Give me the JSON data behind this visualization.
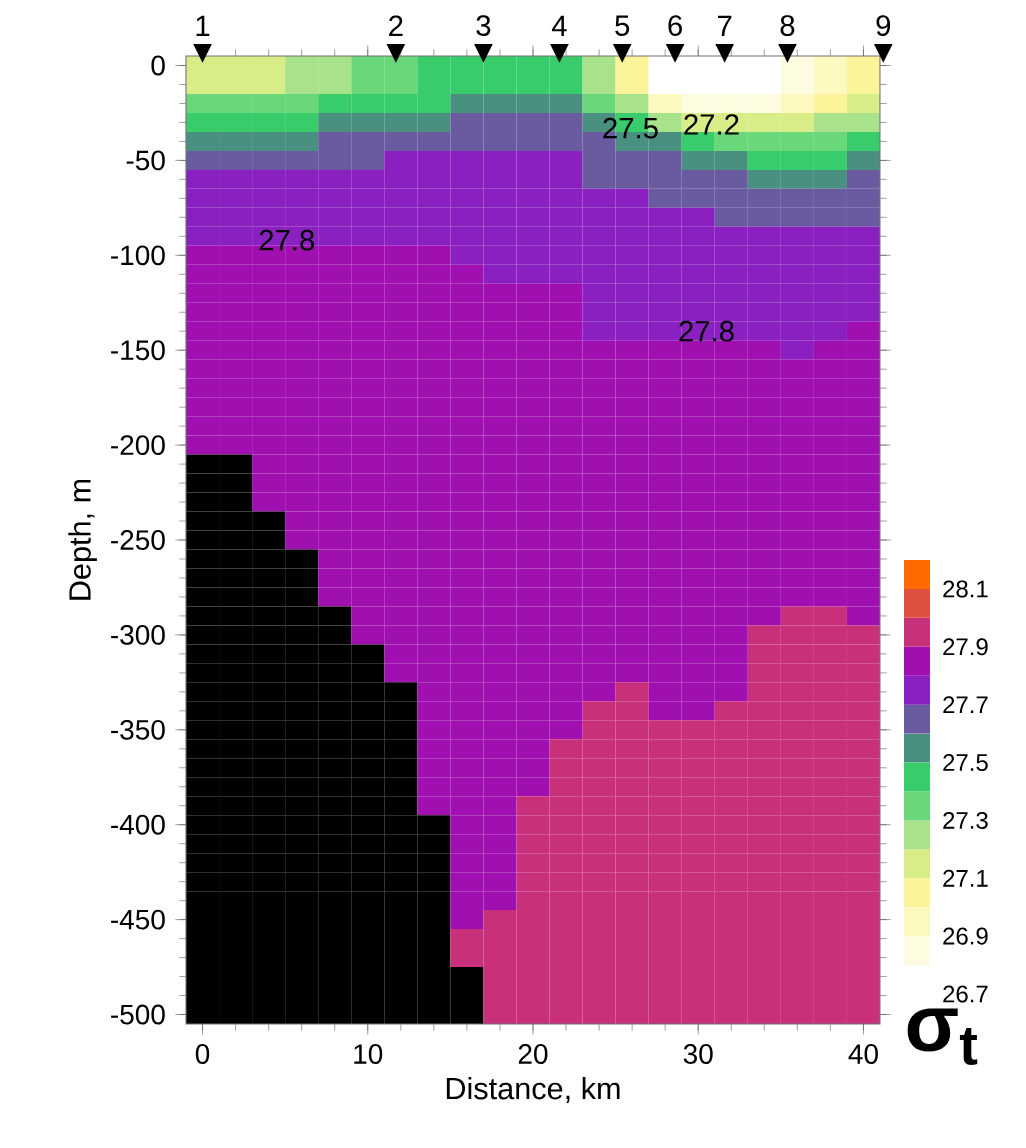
{
  "chart_data": {
    "type": "heatmap",
    "xlabel": "Distance, km",
    "ylabel": "Depth, m",
    "clim": [
      26.7,
      28.2
    ],
    "cticks": [
      26.7,
      26.9,
      27.1,
      27.3,
      27.5,
      27.7,
      27.9,
      28.1
    ],
    "categories": [
      "0",
      null,
      null,
      null,
      null,
      "10",
      null,
      null,
      null,
      null,
      "20",
      null,
      null,
      null,
      null,
      "30",
      null,
      null,
      null,
      null,
      "40"
    ],
    "y_categories": [
      "0",
      null,
      null,
      null,
      null,
      "-50",
      null,
      null,
      null,
      null,
      "-100",
      null,
      null,
      null,
      null,
      "-150",
      null,
      null,
      null,
      null,
      "-200",
      null,
      null,
      null,
      null,
      "-250",
      null,
      null,
      null,
      null,
      "-300",
      null,
      null,
      null,
      null,
      "-350",
      null,
      null,
      null,
      null,
      "-400",
      null,
      null,
      null,
      null,
      "-450",
      null,
      null,
      null,
      null,
      "-500"
    ],
    "cells": [
      [
        27.15,
        27.15,
        27.15,
        27.25,
        27.25,
        27.35,
        27.35,
        27.45,
        27.45,
        27.45,
        27.45,
        27.45,
        27.25,
        27.05,
        26.75,
        26.75,
        26.75,
        26.75,
        26.85,
        26.95,
        27.05
      ],
      [
        27.15,
        27.15,
        27.15,
        27.25,
        27.25,
        27.35,
        27.35,
        27.45,
        27.45,
        27.45,
        27.45,
        27.45,
        27.25,
        27.05,
        26.75,
        26.75,
        26.75,
        26.75,
        26.85,
        26.95,
        27.05
      ],
      [
        27.35,
        27.35,
        27.35,
        27.35,
        27.45,
        27.45,
        27.45,
        27.45,
        27.55,
        27.55,
        27.55,
        27.55,
        27.35,
        27.25,
        26.95,
        26.85,
        26.85,
        26.85,
        26.95,
        27.05,
        27.15
      ],
      [
        27.45,
        27.45,
        27.45,
        27.45,
        27.55,
        27.55,
        27.55,
        27.55,
        27.65,
        27.65,
        27.65,
        27.65,
        27.55,
        27.45,
        27.25,
        27.15,
        27.15,
        27.15,
        27.15,
        27.25,
        27.25
      ],
      [
        27.55,
        27.55,
        27.55,
        27.55,
        27.65,
        27.65,
        27.65,
        27.65,
        27.65,
        27.65,
        27.65,
        27.65,
        27.65,
        27.55,
        27.55,
        27.45,
        27.35,
        27.35,
        27.35,
        27.35,
        27.45
      ],
      [
        27.65,
        27.65,
        27.65,
        27.65,
        27.65,
        27.65,
        27.75,
        27.75,
        27.75,
        27.75,
        27.75,
        27.75,
        27.65,
        27.65,
        27.65,
        27.55,
        27.55,
        27.45,
        27.45,
        27.45,
        27.55
      ],
      [
        27.75,
        27.75,
        27.75,
        27.75,
        27.75,
        27.75,
        27.75,
        27.75,
        27.75,
        27.75,
        27.75,
        27.75,
        27.65,
        27.65,
        27.65,
        27.65,
        27.65,
        27.55,
        27.55,
        27.55,
        27.65
      ],
      [
        27.75,
        27.75,
        27.75,
        27.75,
        27.75,
        27.75,
        27.75,
        27.75,
        27.75,
        27.75,
        27.75,
        27.75,
        27.75,
        27.75,
        27.65,
        27.65,
        27.65,
        27.65,
        27.65,
        27.65,
        27.65
      ],
      [
        27.75,
        27.75,
        27.75,
        27.75,
        27.75,
        27.75,
        27.75,
        27.75,
        27.75,
        27.75,
        27.75,
        27.75,
        27.75,
        27.75,
        27.75,
        27.75,
        27.65,
        27.65,
        27.65,
        27.65,
        27.65
      ],
      [
        27.75,
        27.75,
        27.75,
        27.75,
        27.75,
        27.75,
        27.75,
        27.75,
        27.75,
        27.75,
        27.75,
        27.75,
        27.75,
        27.75,
        27.75,
        27.75,
        27.75,
        27.75,
        27.75,
        27.75,
        27.75
      ],
      [
        27.85,
        27.85,
        27.85,
        27.85,
        27.85,
        27.85,
        27.85,
        27.85,
        27.75,
        27.75,
        27.75,
        27.75,
        27.75,
        27.75,
        27.75,
        27.75,
        27.75,
        27.75,
        27.75,
        27.75,
        27.75
      ],
      [
        27.85,
        27.85,
        27.85,
        27.85,
        27.85,
        27.85,
        27.85,
        27.85,
        27.85,
        27.75,
        27.75,
        27.75,
        27.75,
        27.75,
        27.75,
        27.75,
        27.75,
        27.75,
        27.75,
        27.75,
        27.75
      ],
      [
        27.85,
        27.85,
        27.85,
        27.85,
        27.85,
        27.85,
        27.85,
        27.85,
        27.85,
        27.85,
        27.85,
        27.85,
        27.75,
        27.75,
        27.75,
        27.75,
        27.75,
        27.75,
        27.75,
        27.75,
        27.75
      ],
      [
        27.85,
        27.85,
        27.85,
        27.85,
        27.85,
        27.85,
        27.85,
        27.85,
        27.85,
        27.85,
        27.85,
        27.85,
        27.75,
        27.75,
        27.75,
        27.75,
        27.75,
        27.75,
        27.75,
        27.75,
        27.75
      ],
      [
        27.85,
        27.85,
        27.85,
        27.85,
        27.85,
        27.85,
        27.85,
        27.85,
        27.85,
        27.85,
        27.85,
        27.85,
        27.75,
        27.75,
        27.75,
        27.75,
        27.75,
        27.75,
        27.75,
        27.75,
        27.85
      ],
      [
        27.85,
        27.85,
        27.85,
        27.85,
        27.85,
        27.85,
        27.85,
        27.85,
        27.85,
        27.85,
        27.85,
        27.85,
        27.85,
        27.85,
        27.85,
        27.85,
        27.85,
        27.85,
        27.75,
        27.85,
        27.85
      ],
      [
        27.85,
        27.85,
        27.85,
        27.85,
        27.85,
        27.85,
        27.85,
        27.85,
        27.85,
        27.85,
        27.85,
        27.85,
        27.85,
        27.85,
        27.85,
        27.85,
        27.85,
        27.85,
        27.85,
        27.85,
        27.85
      ],
      [
        27.85,
        27.85,
        27.85,
        27.85,
        27.85,
        27.85,
        27.85,
        27.85,
        27.85,
        27.85,
        27.85,
        27.85,
        27.85,
        27.85,
        27.85,
        27.85,
        27.85,
        27.85,
        27.85,
        27.85,
        27.85
      ],
      [
        27.85,
        27.85,
        27.85,
        27.85,
        27.85,
        27.85,
        27.85,
        27.85,
        27.85,
        27.85,
        27.85,
        27.85,
        27.85,
        27.85,
        27.85,
        27.85,
        27.85,
        27.85,
        27.85,
        27.85,
        27.85
      ],
      [
        27.85,
        27.85,
        27.85,
        27.85,
        27.85,
        27.85,
        27.85,
        27.85,
        27.85,
        27.85,
        27.85,
        27.85,
        27.85,
        27.85,
        27.85,
        27.85,
        27.85,
        27.85,
        27.85,
        27.85,
        27.85
      ],
      [
        27.85,
        27.85,
        27.85,
        27.85,
        27.85,
        27.85,
        27.85,
        27.85,
        27.85,
        27.85,
        27.85,
        27.85,
        27.85,
        27.85,
        27.85,
        27.85,
        27.85,
        27.85,
        27.85,
        27.85,
        27.85
      ],
      [
        null,
        null,
        27.85,
        27.85,
        27.85,
        27.85,
        27.85,
        27.85,
        27.85,
        27.85,
        27.85,
        27.85,
        27.85,
        27.85,
        27.85,
        27.85,
        27.85,
        27.85,
        27.85,
        27.85,
        27.85
      ],
      [
        null,
        null,
        27.85,
        27.85,
        27.85,
        27.85,
        27.85,
        27.85,
        27.85,
        27.85,
        27.85,
        27.85,
        27.85,
        27.85,
        27.85,
        27.85,
        27.85,
        27.85,
        27.85,
        27.85,
        27.85
      ],
      [
        null,
        null,
        27.85,
        27.85,
        27.85,
        27.85,
        27.85,
        27.85,
        27.85,
        27.85,
        27.85,
        27.85,
        27.85,
        27.85,
        27.85,
        27.85,
        27.85,
        27.85,
        27.85,
        27.85,
        27.85
      ],
      [
        null,
        null,
        null,
        27.85,
        27.85,
        27.85,
        27.85,
        27.85,
        27.85,
        27.85,
        27.85,
        27.85,
        27.85,
        27.85,
        27.85,
        27.85,
        27.85,
        27.85,
        27.85,
        27.85,
        27.85
      ],
      [
        null,
        null,
        null,
        27.85,
        27.85,
        27.85,
        27.85,
        27.85,
        27.85,
        27.85,
        27.85,
        27.85,
        27.85,
        27.85,
        27.85,
        27.85,
        27.85,
        27.85,
        27.85,
        27.85,
        27.85
      ],
      [
        null,
        null,
        null,
        null,
        27.85,
        27.85,
        27.85,
        27.85,
        27.85,
        27.85,
        27.85,
        27.85,
        27.85,
        27.85,
        27.85,
        27.85,
        27.85,
        27.85,
        27.85,
        27.85,
        27.85
      ],
      [
        null,
        null,
        null,
        null,
        27.85,
        27.85,
        27.85,
        27.85,
        27.85,
        27.85,
        27.85,
        27.85,
        27.85,
        27.85,
        27.85,
        27.85,
        27.85,
        27.85,
        27.85,
        27.85,
        27.85
      ],
      [
        null,
        null,
        null,
        null,
        27.85,
        27.85,
        27.85,
        27.85,
        27.85,
        27.85,
        27.85,
        27.85,
        27.85,
        27.85,
        27.85,
        27.85,
        27.85,
        27.85,
        27.85,
        27.85,
        27.85
      ],
      [
        null,
        null,
        null,
        null,
        null,
        27.85,
        27.85,
        27.85,
        27.85,
        27.85,
        27.85,
        27.85,
        27.85,
        27.85,
        27.85,
        27.85,
        27.85,
        27.85,
        27.95,
        27.95,
        27.85
      ],
      [
        null,
        null,
        null,
        null,
        null,
        27.85,
        27.85,
        27.85,
        27.85,
        27.85,
        27.85,
        27.85,
        27.85,
        27.85,
        27.85,
        27.85,
        27.85,
        27.95,
        27.95,
        27.95,
        27.95
      ],
      [
        null,
        null,
        null,
        null,
        null,
        null,
        27.85,
        27.85,
        27.85,
        27.85,
        27.85,
        27.85,
        27.85,
        27.85,
        27.85,
        27.85,
        27.85,
        27.95,
        27.95,
        27.95,
        27.95
      ],
      [
        null,
        null,
        null,
        null,
        null,
        null,
        27.85,
        27.85,
        27.85,
        27.85,
        27.85,
        27.85,
        27.85,
        27.85,
        27.85,
        27.85,
        27.85,
        27.95,
        27.95,
        27.95,
        27.95
      ],
      [
        null,
        null,
        null,
        null,
        null,
        null,
        null,
        27.85,
        27.85,
        27.85,
        27.85,
        27.85,
        27.85,
        27.95,
        27.85,
        27.85,
        27.85,
        27.95,
        27.95,
        27.95,
        27.95
      ],
      [
        null,
        null,
        null,
        null,
        null,
        null,
        null,
        27.85,
        27.85,
        27.85,
        27.85,
        27.85,
        27.95,
        27.95,
        27.85,
        27.85,
        27.95,
        27.95,
        27.95,
        27.95,
        27.95
      ],
      [
        null,
        null,
        null,
        null,
        null,
        null,
        null,
        27.85,
        27.85,
        27.85,
        27.85,
        27.85,
        27.95,
        27.95,
        27.95,
        27.95,
        27.95,
        27.95,
        27.95,
        27.95,
        27.95
      ],
      [
        null,
        null,
        null,
        null,
        null,
        null,
        null,
        27.85,
        27.85,
        27.85,
        27.85,
        27.95,
        27.95,
        27.95,
        27.95,
        27.95,
        27.95,
        27.95,
        27.95,
        27.95,
        27.95
      ],
      [
        null,
        null,
        null,
        null,
        null,
        null,
        null,
        27.85,
        27.85,
        27.85,
        27.85,
        27.95,
        27.95,
        27.95,
        27.95,
        27.95,
        27.95,
        27.95,
        27.95,
        27.95,
        27.95
      ],
      [
        null,
        null,
        null,
        null,
        null,
        null,
        null,
        27.85,
        27.85,
        27.85,
        27.85,
        27.95,
        27.95,
        27.95,
        27.95,
        27.95,
        27.95,
        27.95,
        27.95,
        27.95,
        27.95
      ],
      [
        null,
        null,
        null,
        null,
        null,
        null,
        null,
        27.85,
        27.85,
        27.85,
        27.95,
        27.95,
        27.95,
        27.95,
        27.95,
        27.95,
        27.95,
        27.95,
        27.95,
        27.95,
        27.95
      ],
      [
        null,
        null,
        null,
        null,
        null,
        null,
        null,
        null,
        27.85,
        27.85,
        27.95,
        27.95,
        27.95,
        27.95,
        27.95,
        27.95,
        27.95,
        27.95,
        27.95,
        27.95,
        27.95
      ],
      [
        null,
        null,
        null,
        null,
        null,
        null,
        null,
        null,
        27.85,
        27.85,
        27.95,
        27.95,
        27.95,
        27.95,
        27.95,
        27.95,
        27.95,
        27.95,
        27.95,
        27.95,
        27.95
      ],
      [
        null,
        null,
        null,
        null,
        null,
        null,
        null,
        null,
        27.85,
        27.85,
        27.95,
        27.95,
        27.95,
        27.95,
        27.95,
        27.95,
        27.95,
        27.95,
        27.95,
        27.95,
        27.95
      ],
      [
        null,
        null,
        null,
        null,
        null,
        null,
        null,
        null,
        27.85,
        27.85,
        27.95,
        27.95,
        27.95,
        27.95,
        27.95,
        27.95,
        27.95,
        27.95,
        27.95,
        27.95,
        27.95
      ],
      [
        null,
        null,
        null,
        null,
        null,
        null,
        null,
        null,
        27.85,
        27.85,
        27.95,
        27.95,
        27.95,
        27.95,
        27.95,
        27.95,
        27.95,
        27.95,
        27.95,
        27.95,
        27.95
      ],
      [
        null,
        null,
        null,
        null,
        null,
        null,
        null,
        null,
        27.85,
        27.95,
        27.95,
        27.95,
        27.95,
        27.95,
        27.95,
        27.95,
        27.95,
        27.95,
        27.95,
        27.95,
        27.95
      ],
      [
        null,
        null,
        null,
        null,
        null,
        null,
        null,
        null,
        27.95,
        27.95,
        27.95,
        27.95,
        27.95,
        27.95,
        27.95,
        27.95,
        27.95,
        27.95,
        27.95,
        27.95,
        27.95
      ],
      [
        null,
        null,
        null,
        null,
        null,
        null,
        null,
        null,
        27.95,
        27.95,
        27.95,
        27.95,
        27.95,
        27.95,
        27.95,
        27.95,
        27.95,
        27.95,
        27.95,
        27.95,
        27.95
      ],
      [
        null,
        null,
        null,
        null,
        null,
        null,
        null,
        null,
        null,
        27.95,
        27.95,
        27.95,
        27.95,
        27.95,
        27.95,
        27.95,
        27.95,
        27.95,
        27.95,
        27.95,
        27.95
      ],
      [
        null,
        null,
        null,
        null,
        null,
        null,
        null,
        null,
        null,
        27.95,
        27.95,
        27.95,
        27.95,
        27.95,
        27.95,
        27.95,
        27.95,
        27.95,
        27.95,
        27.95,
        27.95
      ],
      [
        null,
        null,
        null,
        null,
        null,
        null,
        null,
        null,
        null,
        27.95,
        27.95,
        27.95,
        27.95,
        27.95,
        27.95,
        27.95,
        27.95,
        27.95,
        27.95,
        27.95,
        27.95
      ]
    ],
    "annotations": [
      "1",
      "2",
      "3",
      "4",
      "5",
      "6",
      "7",
      "8",
      "9",
      "27.8",
      "27.8",
      "27.5",
      "27.2",
      "σ$_{t}$"
    ]
  }
}
